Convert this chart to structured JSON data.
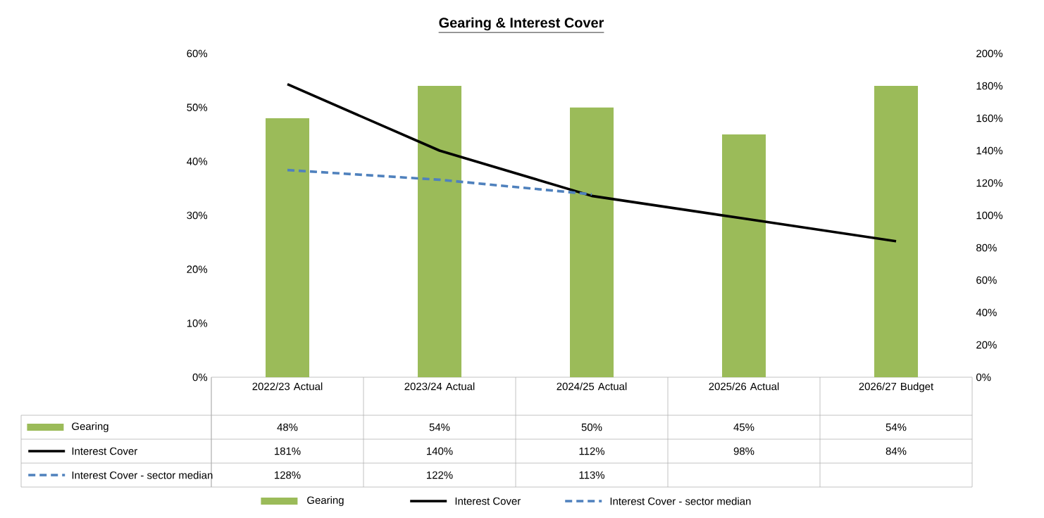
{
  "chart_data": {
    "type": "bar",
    "title": "Gearing & Interest Cover",
    "categories": [
      "2022/23 Actual",
      "2023/24 Actual",
      "2024/25 Actual",
      "2025/26 Actual",
      "2026/27 Budget"
    ],
    "series": [
      {
        "name": "Gearing",
        "color": "#9bbb59",
        "values": [
          48,
          54,
          50,
          45,
          54
        ],
        "value_labels": [
          "48%",
          "54%",
          "50%",
          "45%",
          "54%"
        ]
      },
      {
        "name": "Interest Cover",
        "type": "line",
        "axis": "y2",
        "color": "#000000",
        "values": [
          181,
          140,
          112,
          98,
          84
        ],
        "value_labels": [
          "181%",
          "140%",
          "112%",
          "98%",
          "84%"
        ]
      },
      {
        "name": "Interest Cover - sector median",
        "type": "line",
        "axis": "y2",
        "color": "#4f81bd",
        "line_style": "dashed",
        "values": [
          128,
          122,
          113,
          null,
          null
        ],
        "value_labels": [
          "128%",
          "122%",
          "113%",
          null,
          null
        ]
      }
    ],
    "ylim": [
      0,
      60
    ],
    "yticks": [
      {
        "value": 0,
        "label": "0%"
      },
      {
        "value": 10,
        "label": "10%"
      },
      {
        "value": 20,
        "label": "20%"
      },
      {
        "value": 30,
        "label": "30%"
      },
      {
        "value": 40,
        "label": "40%"
      },
      {
        "value": 50,
        "label": "50%"
      },
      {
        "value": 60,
        "label": "60%"
      }
    ],
    "y2lim": [
      0,
      200
    ],
    "y2ticks": [
      {
        "value": 0,
        "label": "0%"
      },
      {
        "value": 20,
        "label": "20%"
      },
      {
        "value": 40,
        "label": "40%"
      },
      {
        "value": 60,
        "label": "60%"
      },
      {
        "value": 80,
        "label": "80%"
      },
      {
        "value": 100,
        "label": "100%"
      },
      {
        "value": 120,
        "label": "120%"
      },
      {
        "value": 140,
        "label": "140%"
      },
      {
        "value": 160,
        "label": "160%"
      },
      {
        "value": 180,
        "label": "180%"
      },
      {
        "value": 200,
        "label": "200%"
      }
    ],
    "legend": "bottom",
    "marker": "none"
  }
}
